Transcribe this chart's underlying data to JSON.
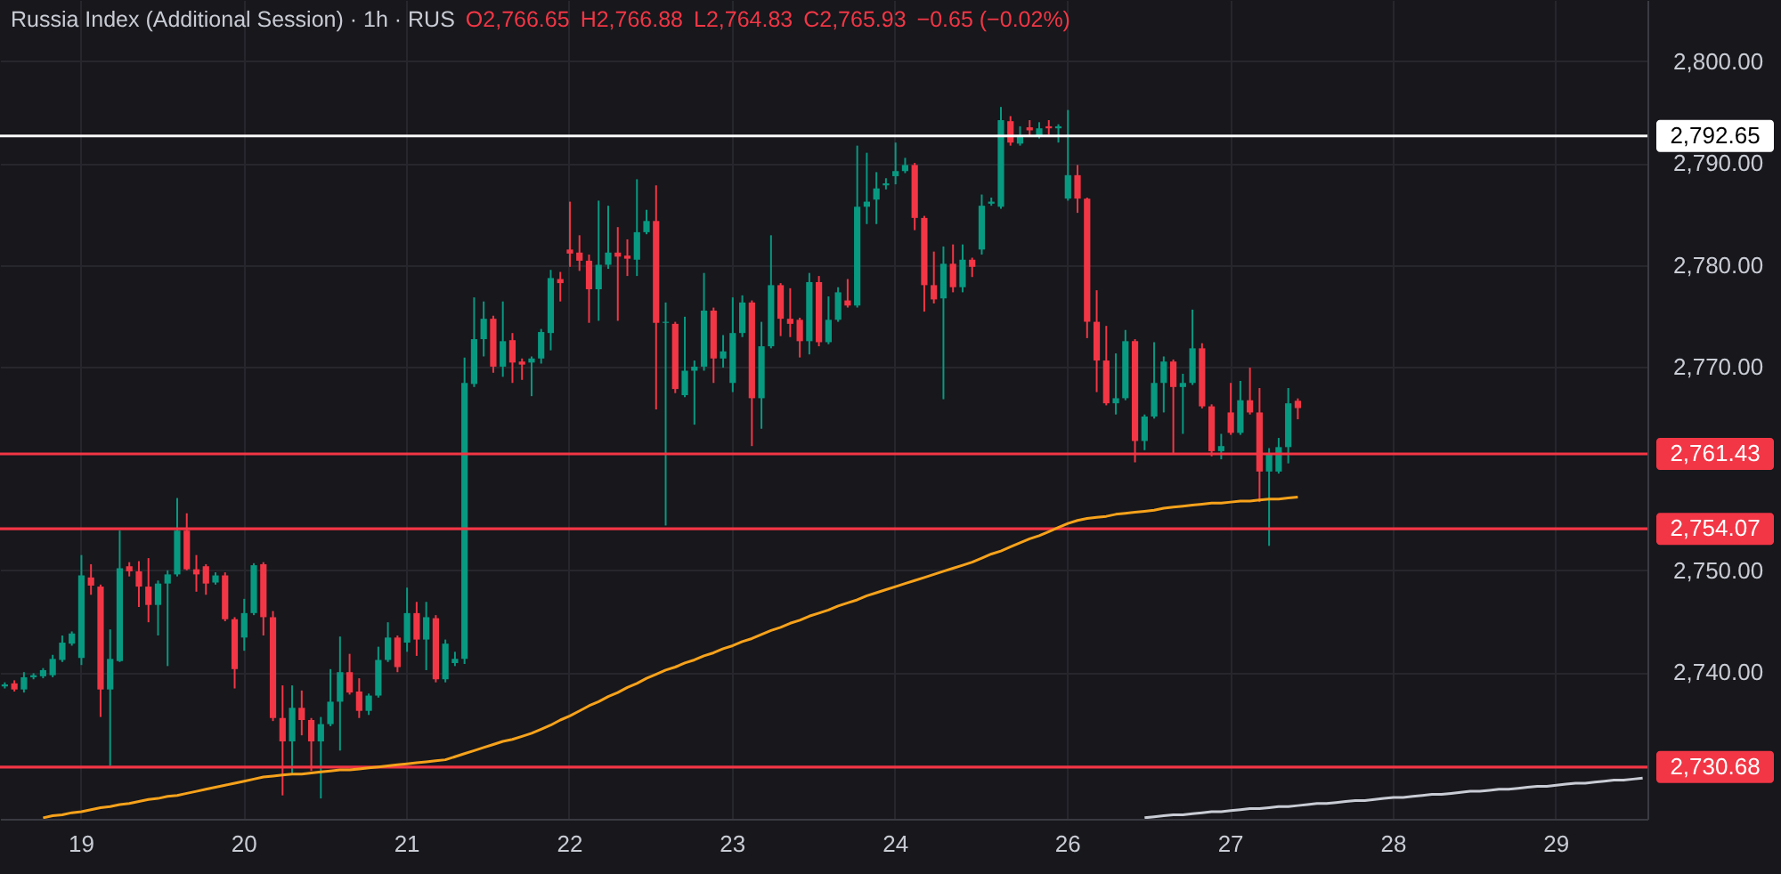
{
  "chart_data": {
    "type": "candlestick",
    "title": "Russia Index (Additional Session) · 1h · RUS",
    "annotations": [
      "O2,766.65",
      "H2,766.88",
      "L2,764.83",
      "C2,765.93",
      "−0.65 (−0.02%)"
    ],
    "categories": [
      null,
      null,
      null,
      null,
      null,
      null,
      null,
      null,
      "19",
      null,
      null,
      null,
      null,
      null,
      null,
      null,
      null,
      null,
      null,
      null,
      null,
      null,
      null,
      null,
      null,
      "20",
      null,
      null,
      null,
      null,
      null,
      null,
      null,
      null,
      null,
      null,
      null,
      null,
      null,
      null,
      null,
      null,
      "21",
      null,
      null,
      null,
      null,
      null,
      null,
      null,
      null,
      null,
      null,
      null,
      null,
      null,
      null,
      null,
      null,
      "22",
      null,
      null,
      null,
      null,
      null,
      null,
      null,
      null,
      null,
      null,
      null,
      null,
      null,
      null,
      null,
      null,
      "23",
      null,
      null,
      null,
      null,
      null,
      null,
      null,
      null,
      null,
      null,
      null,
      null,
      null,
      null,
      null,
      null,
      "24",
      null,
      null,
      null,
      null,
      null,
      null,
      null,
      null,
      null,
      null,
      null,
      null,
      null,
      null,
      null,
      null,
      null,
      "26",
      null,
      null,
      null,
      null,
      null,
      null,
      null,
      null,
      null,
      null,
      null,
      null,
      null,
      null,
      null,
      null,
      "27",
      null,
      null,
      null,
      null,
      null,
      null,
      null,
      null,
      null,
      null,
      null,
      null,
      null,
      null,
      null,
      null,
      "28",
      null,
      null,
      null,
      null,
      null,
      null,
      null,
      null,
      null,
      null,
      null,
      null,
      null,
      null,
      null,
      null,
      "29",
      null,
      null,
      null,
      null,
      null,
      null,
      null,
      null,
      null
    ],
    "ohlc": [
      [
        2738.6,
        2739.0,
        2738.4,
        2738.8
      ],
      [
        2738.9,
        2739.2,
        2738.1,
        2738.3
      ],
      [
        2738.3,
        2740.0,
        2738.0,
        2739.5
      ],
      [
        2739.5,
        2739.9,
        2739.3,
        2739.7
      ],
      [
        2739.6,
        2740.4,
        2739.4,
        2740.2
      ],
      [
        2739.7,
        2741.7,
        2739.5,
        2741.3
      ],
      [
        2741.2,
        2743.6,
        2741.0,
        2742.9
      ],
      [
        2742.8,
        2744.0,
        2742.6,
        2743.8
      ],
      [
        2741.4,
        2751.5,
        2740.7,
        2749.5
      ],
      [
        2749.3,
        2750.6,
        2747.6,
        2748.5
      ],
      [
        2748.4,
        2748.6,
        2735.6,
        2738.3
      ],
      [
        2738.3,
        2744.2,
        2730.8,
        2741.3
      ],
      [
        2741.1,
        2753.9,
        2741.0,
        2750.2
      ],
      [
        2750.4,
        2750.8,
        2749.4,
        2749.9
      ],
      [
        2749.9,
        2750.9,
        2746.4,
        2748.4
      ],
      [
        2748.4,
        2751.2,
        2744.9,
        2746.6
      ],
      [
        2746.6,
        2749.0,
        2743.6,
        2748.7
      ],
      [
        2748.7,
        2750.0,
        2740.6,
        2749.6
      ],
      [
        2749.6,
        2757.1,
        2749.4,
        2753.9
      ],
      [
        2753.9,
        2755.6,
        2750.0,
        2750.1
      ],
      [
        2750.1,
        2751.5,
        2747.9,
        2749.6
      ],
      [
        2750.4,
        2750.6,
        2747.6,
        2748.7
      ],
      [
        2748.8,
        2749.8,
        2748.6,
        2749.5
      ],
      [
        2749.5,
        2749.8,
        2745.0,
        2745.2
      ],
      [
        2745.2,
        2745.4,
        2738.4,
        2740.3
      ],
      [
        2743.4,
        2747.2,
        2742.1,
        2745.8
      ],
      [
        2745.8,
        2750.7,
        2745.6,
        2750.5
      ],
      [
        2750.6,
        2750.8,
        2743.6,
        2745.4
      ],
      [
        2745.4,
        2746.0,
        2735.2,
        2735.5
      ],
      [
        2735.5,
        2738.7,
        2727.9,
        2733.2
      ],
      [
        2733.2,
        2738.7,
        2730.0,
        2736.5
      ],
      [
        2736.5,
        2738.2,
        2733.8,
        2735.3
      ],
      [
        2735.3,
        2735.5,
        2730.3,
        2733.2
      ],
      [
        2733.2,
        2735.6,
        2727.6,
        2734.9
      ],
      [
        2734.9,
        2740.3,
        2734.7,
        2737.1
      ],
      [
        2737.1,
        2743.5,
        2732.3,
        2740.0
      ],
      [
        2740.0,
        2741.8,
        2737.8,
        2738.0
      ],
      [
        2738.1,
        2739.4,
        2735.5,
        2736.2
      ],
      [
        2736.2,
        2737.9,
        2735.8,
        2737.7
      ],
      [
        2737.7,
        2742.5,
        2737.5,
        2741.2
      ],
      [
        2741.2,
        2744.9,
        2741.0,
        2743.4
      ],
      [
        2743.4,
        2743.6,
        2740.0,
        2740.5
      ],
      [
        2742.9,
        2748.3,
        2742.0,
        2745.8
      ],
      [
        2745.8,
        2746.9,
        2741.6,
        2743.2
      ],
      [
        2743.2,
        2746.9,
        2740.2,
        2745.4
      ],
      [
        2745.3,
        2745.6,
        2739.0,
        2739.3
      ],
      [
        2739.3,
        2743.2,
        2739.0,
        2742.8
      ],
      [
        2740.9,
        2742.0,
        2740.6,
        2741.3
      ],
      [
        2741.3,
        2770.9,
        2740.8,
        2768.4
      ],
      [
        2768.3,
        2776.8,
        2768.0,
        2772.7
      ],
      [
        2772.7,
        2776.4,
        2771.0,
        2774.7
      ],
      [
        2774.7,
        2775.0,
        2769.4,
        2770.0
      ],
      [
        2770.0,
        2776.4,
        2769.0,
        2772.5
      ],
      [
        2772.6,
        2773.3,
        2768.4,
        2770.4
      ],
      [
        2770.5,
        2770.8,
        2768.7,
        2770.2
      ],
      [
        2770.4,
        2771.0,
        2767.1,
        2770.8
      ],
      [
        2770.8,
        2773.7,
        2770.3,
        2773.4
      ],
      [
        2773.3,
        2779.5,
        2771.6,
        2778.7
      ],
      [
        2778.6,
        2779.3,
        2776.4,
        2778.2
      ],
      [
        2781.5,
        2786.2,
        2779.8,
        2781.1
      ],
      [
        2781.2,
        2782.9,
        2779.4,
        2780.4
      ],
      [
        2780.4,
        2781.0,
        2774.3,
        2777.6
      ],
      [
        2777.6,
        2786.3,
        2774.5,
        2780.0
      ],
      [
        2780.0,
        2785.8,
        2779.6,
        2781.2
      ],
      [
        2781.2,
        2783.7,
        2774.5,
        2780.8
      ],
      [
        2780.9,
        2782.5,
        2778.9,
        2780.6
      ],
      [
        2780.5,
        2788.4,
        2778.9,
        2783.2
      ],
      [
        2783.2,
        2785.4,
        2783.0,
        2784.3
      ],
      [
        2784.3,
        2787.8,
        2765.8,
        2774.3
      ],
      [
        2774.3,
        2776.3,
        2754.4,
        2774.4
      ],
      [
        2774.2,
        2774.4,
        2767.4,
        2767.8
      ],
      [
        2767.2,
        2774.9,
        2767.0,
        2769.6
      ],
      [
        2769.6,
        2770.6,
        2764.3,
        2770.0
      ],
      [
        2770.0,
        2779.2,
        2769.6,
        2775.5
      ],
      [
        2775.5,
        2775.8,
        2768.4,
        2770.8
      ],
      [
        2770.8,
        2773.1,
        2769.9,
        2771.5
      ],
      [
        2768.4,
        2776.8,
        2767.5,
        2773.3
      ],
      [
        2773.3,
        2777.0,
        2772.9,
        2776.3
      ],
      [
        2776.3,
        2776.5,
        2762.2,
        2766.9
      ],
      [
        2766.9,
        2774.4,
        2763.9,
        2772.0
      ],
      [
        2772.0,
        2782.9,
        2771.8,
        2778.0
      ],
      [
        2778.0,
        2778.2,
        2773.0,
        2774.7
      ],
      [
        2774.7,
        2777.7,
        2772.9,
        2774.2
      ],
      [
        2774.6,
        2774.8,
        2770.9,
        2772.5
      ],
      [
        2772.5,
        2779.2,
        2771.2,
        2778.3
      ],
      [
        2778.3,
        2778.9,
        2772.0,
        2772.4
      ],
      [
        2772.4,
        2776.9,
        2772.2,
        2774.6
      ],
      [
        2774.6,
        2777.8,
        2774.4,
        2777.3
      ],
      [
        2776.5,
        2778.6,
        2775.8,
        2776.0
      ],
      [
        2776.0,
        2791.7,
        2775.8,
        2785.7
      ],
      [
        2785.7,
        2791.0,
        2784.0,
        2786.2
      ],
      [
        2786.4,
        2789.1,
        2784.0,
        2787.5
      ],
      [
        2787.8,
        2788.5,
        2787.4,
        2788.0
      ],
      [
        2788.7,
        2792.0,
        2787.9,
        2789.2
      ],
      [
        2789.2,
        2790.5,
        2789.0,
        2789.8
      ],
      [
        2789.8,
        2790.0,
        2783.4,
        2784.6
      ],
      [
        2784.6,
        2784.8,
        2775.4,
        2778.0
      ],
      [
        2778.0,
        2781.3,
        2776.2,
        2776.6
      ],
      [
        2776.7,
        2781.8,
        2766.8,
        2780.1
      ],
      [
        2780.1,
        2782.0,
        2777.3,
        2777.8
      ],
      [
        2777.8,
        2782.0,
        2777.3,
        2780.5
      ],
      [
        2780.5,
        2780.7,
        2778.8,
        2779.8
      ],
      [
        2781.5,
        2786.9,
        2781.0,
        2785.8
      ],
      [
        2786.0,
        2786.6,
        2785.8,
        2786.2
      ],
      [
        2785.7,
        2795.5,
        2785.5,
        2794.2
      ],
      [
        2794.1,
        2794.6,
        2791.7,
        2792.0
      ],
      [
        2791.9,
        2793.6,
        2791.7,
        2792.6
      ],
      [
        2793.5,
        2794.2,
        2792.6,
        2793.2
      ],
      [
        2792.6,
        2794.0,
        2792.4,
        2793.4
      ],
      [
        2793.6,
        2794.2,
        2792.8,
        2793.4
      ],
      [
        2793.4,
        2793.8,
        2792.0,
        2793.6
      ],
      [
        2786.5,
        2795.2,
        2786.3,
        2788.8
      ],
      [
        2788.8,
        2789.8,
        2785.1,
        2786.5
      ],
      [
        2786.5,
        2786.6,
        2772.8,
        2774.4
      ],
      [
        2774.4,
        2777.5,
        2767.5,
        2770.6
      ],
      [
        2770.6,
        2774.0,
        2766.2,
        2766.4
      ],
      [
        2766.4,
        2771.3,
        2765.3,
        2766.9
      ],
      [
        2766.9,
        2773.6,
        2766.7,
        2772.5
      ],
      [
        2772.5,
        2772.7,
        2760.6,
        2762.7
      ],
      [
        2762.7,
        2765.3,
        2761.8,
        2765.1
      ],
      [
        2765.1,
        2772.4,
        2764.9,
        2768.4
      ],
      [
        2768.4,
        2771.0,
        2765.5,
        2770.5
      ],
      [
        2770.5,
        2770.7,
        2761.5,
        2768.0
      ],
      [
        2768.0,
        2769.3,
        2763.4,
        2768.4
      ],
      [
        2768.4,
        2775.6,
        2768.2,
        2771.8
      ],
      [
        2771.8,
        2772.3,
        2765.9,
        2766.1
      ],
      [
        2766.1,
        2766.3,
        2761.2,
        2761.7
      ],
      [
        2761.7,
        2763.4,
        2760.9,
        2762.2
      ],
      [
        2765.5,
        2768.4,
        2763.3,
        2763.5
      ],
      [
        2763.5,
        2768.6,
        2763.3,
        2766.7
      ],
      [
        2766.7,
        2769.9,
        2765.3,
        2765.5
      ],
      [
        2765.5,
        2767.9,
        2756.7,
        2759.7
      ],
      [
        2759.7,
        2762.0,
        2752.4,
        2761.4
      ],
      [
        2759.7,
        2763.0,
        2759.5,
        2762.1
      ],
      [
        2762.1,
        2767.9,
        2760.5,
        2766.4
      ],
      [
        2766.65,
        2766.88,
        2764.83,
        2765.93
      ],
      null,
      null,
      null,
      null,
      null,
      null,
      null,
      null,
      null,
      null,
      null,
      null,
      null,
      null,
      null,
      null,
      null,
      null,
      null,
      null,
      null,
      null,
      null,
      null,
      null,
      null,
      null,
      null,
      null,
      null,
      null,
      null,
      null,
      null,
      null,
      null
    ],
    "colors": [
      "#089981",
      "#f23645",
      "#089981",
      "#089981",
      "#089981",
      "#089981",
      "#089981",
      "#089981",
      "#089981",
      "#f23645",
      "#f23645",
      "#089981",
      "#089981",
      "#f23645",
      "#f23645",
      "#f23645",
      "#089981",
      "#089981",
      "#089981",
      "#f23645",
      "#f23645",
      "#f23645",
      "#089981",
      "#f23645",
      "#f23645",
      "#089981",
      "#089981",
      "#f23645",
      "#f23645",
      "#f23645",
      "#089981",
      "#f23645",
      "#f23645",
      "#089981",
      "#089981",
      "#089981",
      "#f23645",
      "#f23645",
      "#089981",
      "#089981",
      "#089981",
      "#f23645",
      "#089981",
      "#f23645",
      "#089981",
      "#f23645",
      "#089981",
      "#089981",
      "#089981",
      "#089981",
      "#089981",
      "#f23645",
      "#089981",
      "#f23645",
      "#f23645",
      "#089981",
      "#089981",
      "#089981",
      "#f23645",
      "#f23645",
      "#f23645",
      "#f23645",
      "#089981",
      "#089981",
      "#f23645",
      "#f23645",
      "#089981",
      "#089981",
      "#f23645",
      "#089981",
      "#f23645",
      "#089981",
      "#089981",
      "#089981",
      "#f23645",
      "#089981",
      "#089981",
      "#089981",
      "#f23645",
      "#089981",
      "#089981",
      "#f23645",
      "#f23645",
      "#f23645",
      "#089981",
      "#f23645",
      "#089981",
      "#089981",
      "#f23645",
      "#089981",
      "#089981",
      "#089981",
      "#089981",
      "#089981",
      "#089981",
      "#f23645",
      "#f23645",
      "#f23645",
      "#089981",
      "#f23645",
      "#089981",
      "#f23645",
      "#089981",
      "#089981",
      "#089981",
      "#f23645",
      "#089981",
      "#f23645",
      "#089981",
      "#f23645",
      "#089981",
      "#089981",
      "#f23645",
      "#f23645",
      "#f23645",
      "#f23645",
      "#089981",
      "#089981",
      "#f23645",
      "#089981",
      "#089981",
      "#089981",
      "#f23645",
      "#089981",
      "#089981",
      "#f23645",
      "#f23645",
      "#089981",
      "#f23645",
      "#089981",
      "#f23645",
      "#f23645",
      "#089981",
      "#089981",
      "#089981",
      "#f23645",
      null,
      null,
      null,
      null,
      null,
      null,
      null,
      null,
      null,
      null,
      null,
      null,
      null,
      null,
      null,
      null,
      null,
      null,
      null,
      null,
      null,
      null,
      null,
      null,
      null,
      null,
      null,
      null,
      null,
      null,
      null,
      null,
      null,
      null,
      null,
      null
    ],
    "series": [
      {
        "type": "line",
        "color": "#f7a21b",
        "values": [
          null,
          null,
          null,
          null,
          2725.7,
          2725.9,
          2726.0,
          2726.2,
          2726.3,
          2726.5,
          2726.7,
          2726.8,
          2727.0,
          2727.1,
          2727.3,
          2727.5,
          2727.6,
          2727.8,
          2727.9,
          2728.1,
          2728.3,
          2728.5,
          2728.7,
          2728.9,
          2729.1,
          2729.3,
          2729.5,
          2729.7,
          2729.8,
          2729.9,
          2730.0,
          2730.0,
          2730.1,
          2730.2,
          2730.3,
          2730.4,
          2730.4,
          2730.5,
          2730.6,
          2730.7,
          2730.8,
          2730.9,
          2731.0,
          2731.1,
          2731.2,
          2731.3,
          2731.4,
          2731.7,
          2732.0,
          2732.3,
          2732.6,
          2732.9,
          2733.2,
          2733.4,
          2733.7,
          2734.0,
          2734.4,
          2734.8,
          2735.3,
          2735.7,
          2736.2,
          2736.7,
          2737.1,
          2737.6,
          2738.0,
          2738.5,
          2738.9,
          2739.4,
          2739.8,
          2740.2,
          2740.5,
          2740.9,
          2741.2,
          2741.6,
          2741.9,
          2742.3,
          2742.6,
          2743.0,
          2743.3,
          2743.7,
          2744.1,
          2744.4,
          2744.8,
          2745.1,
          2745.5,
          2745.8,
          2746.1,
          2746.5,
          2746.8,
          2747.1,
          2747.5,
          2747.8,
          2748.1,
          2748.4,
          2748.7,
          2749.0,
          2749.3,
          2749.6,
          2749.9,
          2750.2,
          2750.5,
          2750.8,
          2751.2,
          2751.6,
          2751.9,
          2752.3,
          2752.7,
          2753.1,
          2753.4,
          2753.8,
          2754.2,
          2754.6,
          2754.9,
          2755.1,
          2755.2,
          2755.3,
          2755.5,
          2755.6,
          2755.7,
          2755.8,
          2755.9,
          2756.1,
          2756.2,
          2756.3,
          2756.4,
          2756.5,
          2756.6,
          2756.6,
          2756.7,
          2756.8,
          2756.8,
          2756.9,
          2757.0,
          2757.0,
          2757.1,
          2757.2,
          null,
          null,
          null,
          null,
          null,
          null,
          null,
          null,
          null,
          null,
          null,
          null,
          null,
          null,
          null,
          null,
          null,
          null,
          null,
          null,
          null,
          null,
          null,
          null,
          null,
          null,
          null,
          null,
          null,
          null,
          null,
          null,
          null,
          null,
          null,
          null
        ]
      },
      {
        "type": "line",
        "color": "#c9ccd4",
        "values": [
          null,
          null,
          null,
          null,
          null,
          null,
          null,
          null,
          null,
          null,
          null,
          null,
          null,
          null,
          null,
          null,
          null,
          null,
          null,
          null,
          null,
          null,
          null,
          null,
          null,
          null,
          null,
          null,
          null,
          null,
          null,
          null,
          null,
          null,
          null,
          null,
          null,
          null,
          null,
          null,
          null,
          null,
          null,
          null,
          null,
          null,
          null,
          null,
          null,
          null,
          null,
          null,
          null,
          null,
          null,
          null,
          null,
          null,
          null,
          null,
          null,
          null,
          null,
          null,
          null,
          null,
          null,
          null,
          null,
          null,
          null,
          null,
          null,
          null,
          null,
          null,
          null,
          null,
          null,
          null,
          null,
          null,
          null,
          null,
          null,
          null,
          null,
          null,
          null,
          null,
          null,
          null,
          null,
          null,
          null,
          null,
          null,
          null,
          null,
          null,
          null,
          null,
          null,
          null,
          null,
          null,
          null,
          null,
          null,
          null,
          null,
          null,
          null,
          null,
          null,
          null,
          null,
          null,
          null,
          2725.7,
          2725.8,
          2725.9,
          2726.0,
          2726.0,
          2726.1,
          2726.2,
          2726.3,
          2726.3,
          2726.4,
          2726.5,
          2726.6,
          2726.6,
          2726.7,
          2726.8,
          2726.8,
          2726.9,
          2727.0,
          2727.1,
          2727.1,
          2727.2,
          2727.3,
          2727.4,
          2727.4,
          2727.5,
          2727.6,
          2727.7,
          2727.7,
          2727.8,
          2727.9,
          2728.0,
          2728.0,
          2728.1,
          2728.2,
          2728.3,
          2728.3,
          2728.4,
          2728.5,
          2728.5,
          2728.6,
          2728.7,
          2728.8,
          2728.8,
          2728.9,
          2729.0,
          2729.1,
          2729.1,
          2729.2,
          2729.3,
          2729.4,
          2729.4,
          2729.5,
          2729.6
        ]
      }
    ],
    "ylim": [
      2725.6,
      2806
    ],
    "yticks": [
      {
        "value": 2740,
        "label": "2,740.00"
      },
      {
        "value": 2750,
        "label": "2,750.00"
      },
      {
        "value": 2770,
        "label": "2,770.00"
      },
      {
        "value": 2780,
        "label": "2,780.00"
      },
      {
        "value": 2790,
        "label": "2,790.00"
      },
      {
        "value": 2800,
        "label": "2,800.00"
      }
    ],
    "ref_lines": [
      {
        "axis": "y",
        "value": 2792.65,
        "label": "2,792.65",
        "color": "#ffffff"
      },
      {
        "axis": "y",
        "value": 2761.43,
        "label": "2,761.43",
        "color": "#f23645"
      },
      {
        "axis": "y",
        "value": 2754.07,
        "label": "2,754.07",
        "color": "#f23645"
      },
      {
        "axis": "y",
        "value": 2730.68,
        "label": "2,730.68",
        "color": "#f23645"
      }
    ],
    "grid": true,
    "line_style": "solid"
  }
}
